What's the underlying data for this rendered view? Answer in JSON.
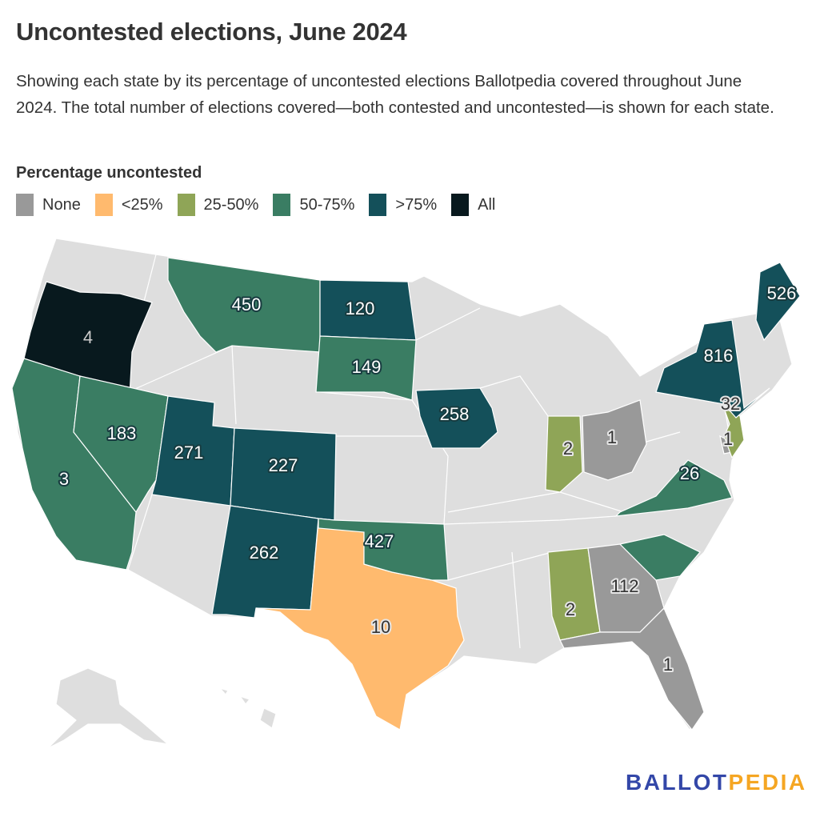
{
  "title": "Uncontested elections, June 2024",
  "subtitle": "Showing each state by its percentage of uncontested elections Ballotpedia covered throughout June 2024. The total number of elections covered—both contested and uncontested—is shown for each state.",
  "legend": {
    "title": "Percentage uncontested",
    "items": [
      {
        "key": "none",
        "label": "None",
        "color": "#999999"
      },
      {
        "key": "lt25",
        "label": "<25%",
        "color": "#ffba6e"
      },
      {
        "key": "25_50",
        "label": "25-50%",
        "color": "#8fa557"
      },
      {
        "key": "50_75",
        "label": "50-75%",
        "color": "#3a7d63"
      },
      {
        "key": "gt75",
        "label": ">75%",
        "color": "#14505a"
      },
      {
        "key": "all",
        "label": "All",
        "color": "#08191e"
      }
    ]
  },
  "no_data_color": "#dedede",
  "states": {
    "OR": {
      "category": "all",
      "value": "4"
    },
    "CA": {
      "category": "50_75",
      "value": "3"
    },
    "NV": {
      "category": "50_75",
      "value": "183"
    },
    "UT": {
      "category": "gt75",
      "value": "271"
    },
    "CO": {
      "category": "gt75",
      "value": "227"
    },
    "NM": {
      "category": "gt75",
      "value": "262"
    },
    "TX": {
      "category": "lt25",
      "value": "10"
    },
    "OK": {
      "category": "50_75",
      "value": "427"
    },
    "MT": {
      "category": "50_75",
      "value": "450"
    },
    "ND": {
      "category": "gt75",
      "value": "120"
    },
    "SD": {
      "category": "50_75",
      "value": "149"
    },
    "IA": {
      "category": "gt75",
      "value": "258"
    },
    "IN": {
      "category": "25_50",
      "value": "2"
    },
    "OH": {
      "category": "none",
      "value": "1"
    },
    "AL": {
      "category": "25_50",
      "value": "2"
    },
    "GA": {
      "category": "none",
      "value": "112"
    },
    "FL": {
      "category": "none",
      "value": "1"
    },
    "SC": {
      "category": "50_75",
      "value": ""
    },
    "VA": {
      "category": "50_75",
      "value": "26"
    },
    "DE": {
      "category": "none",
      "value": "1"
    },
    "NJ": {
      "category": "25_50",
      "value": "32"
    },
    "NY": {
      "category": "gt75",
      "value": "816"
    },
    "ME": {
      "category": "gt75",
      "value": "526"
    }
  },
  "logo": {
    "part1": "BALLOT",
    "part2": "PEDIA",
    "color1": "#3347a8",
    "color2": "#f5a623"
  }
}
